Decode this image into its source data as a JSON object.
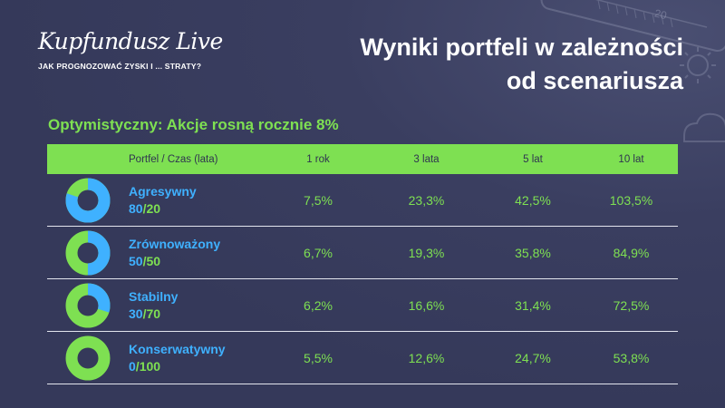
{
  "brand": {
    "logo": "Kupfundusz Live",
    "tagline": "JAK PROGNOZOWAĆ ZYSKI I ... STRATY?"
  },
  "title": {
    "line1": "Wyniki portfeli w zależności",
    "line2": "od scenariusza"
  },
  "scenario": "Optymistyczny: Akcje rosną rocznie 8%",
  "colors": {
    "background": "#35395a",
    "accent_green": "#7ee052",
    "accent_blue": "#3fb1ff",
    "text_white": "#ffffff"
  },
  "table": {
    "headers": [
      "Portfel / Czas (lata)",
      "1 rok",
      "3 lata",
      "5 lat",
      "10 lat"
    ],
    "rows": [
      {
        "name": "Agresywny",
        "equity": "80",
        "slash": "/",
        "bonds": "20",
        "equity_share": 0.8,
        "values": [
          "7,5%",
          "23,3%",
          "42,5%",
          "103,5%"
        ]
      },
      {
        "name": "Zrównoważony",
        "equity": "50",
        "slash": "/",
        "bonds": "50",
        "equity_share": 0.5,
        "values": [
          "6,7%",
          "19,3%",
          "35,8%",
          "84,9%"
        ]
      },
      {
        "name": "Stabilny",
        "equity": "30",
        "slash": "/",
        "bonds": "70",
        "equity_share": 0.3,
        "values": [
          "6,2%",
          "16,6%",
          "31,4%",
          "72,5%"
        ]
      },
      {
        "name": "Konserwatywny",
        "equity": "0",
        "slash": "/",
        "bonds": "100",
        "equity_share": 0.0,
        "values": [
          "5,5%",
          "12,6%",
          "24,7%",
          "53,8%"
        ]
      }
    ]
  },
  "decoration": {
    "thermometer_visible_number": "20"
  }
}
